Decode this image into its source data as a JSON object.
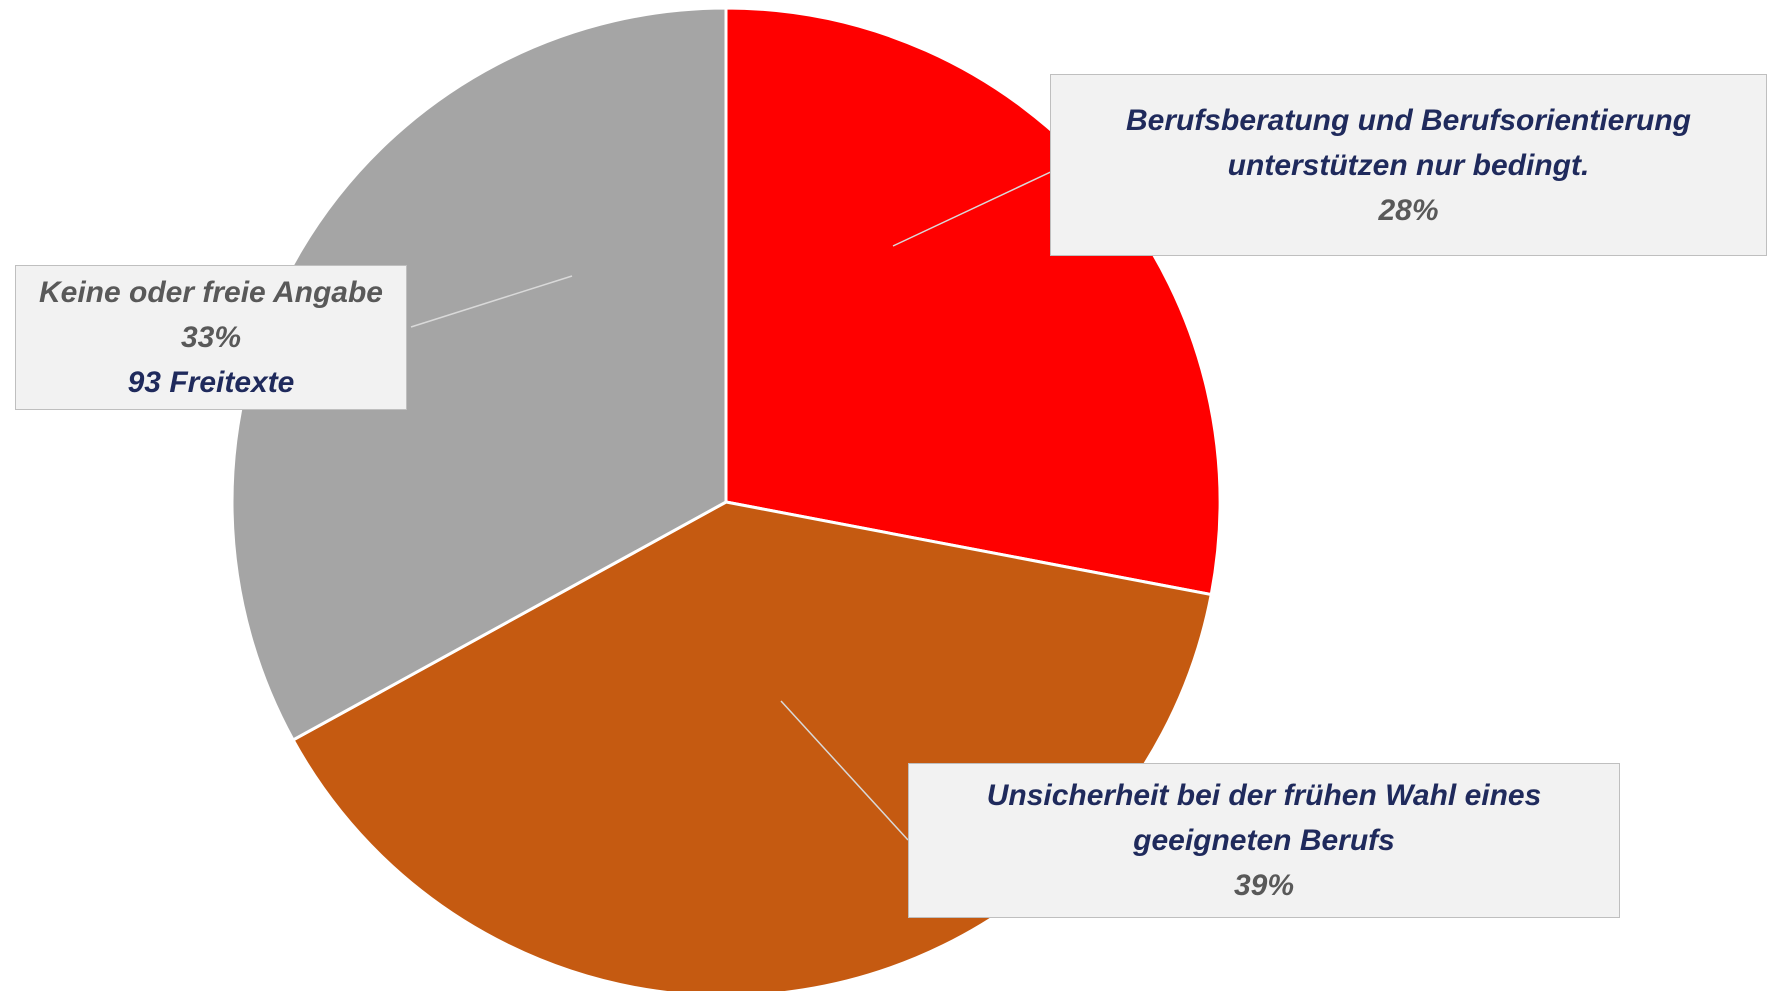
{
  "chart_data": {
    "type": "pie",
    "categories": [
      "Berufsberatung und Berufsorientierung unterstützen nur bedingt.",
      "Unsicherheit bei der frühen Wahl eines geeigneten Berufs",
      "Keine oder freie Angabe"
    ],
    "values": [
      28,
      39,
      33
    ],
    "value_labels": [
      "28%",
      "39%",
      "33%"
    ],
    "colors": [
      "#ff0000",
      "#c55a11",
      "#a5a5a5"
    ],
    "annotation": "93 Freitexte"
  }
}
